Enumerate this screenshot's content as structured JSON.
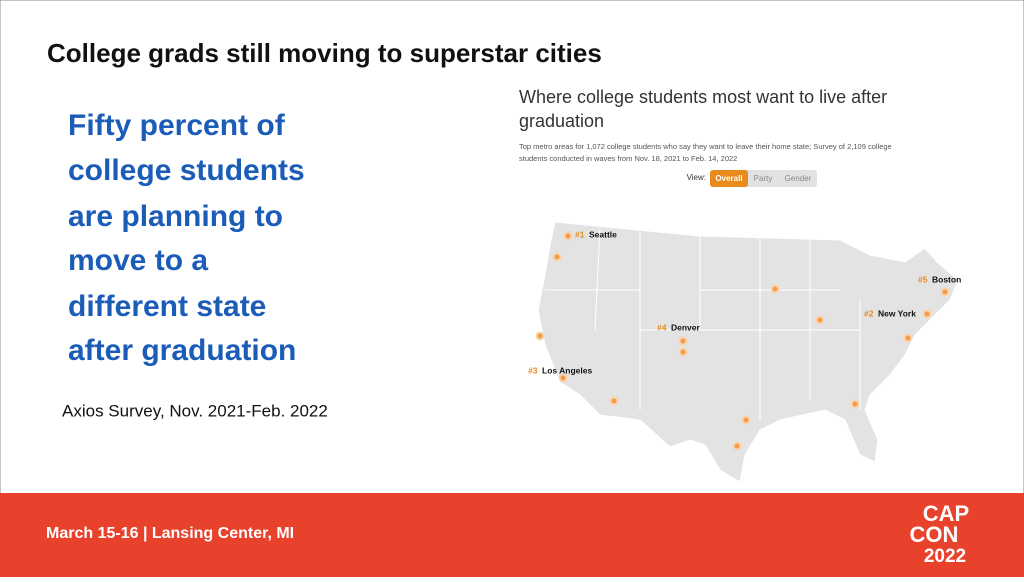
{
  "header": {
    "title": "College grads still moving to superstar cities"
  },
  "callout": {
    "lines": [
      "Fifty percent of",
      "college students",
      "are planning to",
      "move to a",
      "different state",
      "after graduation"
    ]
  },
  "source": "Axios Survey, Nov. 2021-Feb. 2022",
  "map": {
    "title_lines": [
      "Where college students most want to live after",
      "graduation"
    ],
    "subtitle_lines": [
      "Top metro areas for 1,072 college students who say they want to leave their home state; Survey of 2,109 college",
      "students conducted in waves from Nov. 18, 2021 to Feb. 14, 2022"
    ],
    "view_label": "View:",
    "tabs": [
      "Overall",
      "Party",
      "Gender"
    ],
    "cities": [
      {
        "rank": "#1",
        "name": "Seattle"
      },
      {
        "rank": "#5",
        "name": "Boston"
      },
      {
        "rank": "#2",
        "name": "New York"
      },
      {
        "rank": "#4",
        "name": "Denver"
      },
      {
        "rank": "#3",
        "name": "Los Angeles"
      }
    ]
  },
  "footer": {
    "event": "March 15-16 | Lansing Center, MI",
    "logo": [
      "CAP",
      "CON",
      "2022"
    ]
  }
}
